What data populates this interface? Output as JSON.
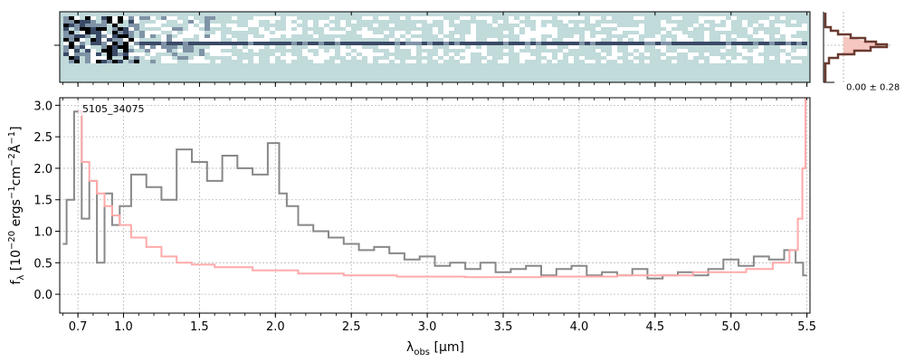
{
  "chart_data": [
    {
      "type": "heatmap",
      "panel": "2d-spectrum",
      "colormap": [
        "#000000",
        "#3a4a66",
        "#7f93a6",
        "#c1dada",
        "#ffffff"
      ],
      "background": "#c1dada",
      "trace_row": "center"
    },
    {
      "type": "line",
      "panel": "1d-spectrum",
      "annotation": "5105_34075",
      "xlabel_main": "λ",
      "xlabel_sub": "obs",
      "xlabel_unit": "[μm]",
      "ylabel": "f_λ [10^-20 ergs^-1cm^-2Å^-1]",
      "ylabel_parts": {
        "base": "f",
        "sub": "λ",
        "open": "[10",
        "exp1": "−20",
        "mid1": " ergs",
        "exp2": "−1",
        "mid2": "cm",
        "exp3": "−2",
        "mid3": "Å",
        "exp4": "−1",
        "close": "]"
      },
      "xlim": [
        0.58,
        5.52
      ],
      "ylim": [
        -0.3,
        3.12
      ],
      "x_ticks": [
        0.7,
        1.0,
        1.5,
        2.0,
        2.5,
        3.0,
        3.5,
        4.0,
        4.5,
        5.0,
        5.5
      ],
      "x_tick_labels": [
        "0.7",
        "1.0",
        "1.5",
        "2.0",
        "2.5",
        "3.0",
        "3.5",
        "4.0",
        "4.5",
        "5.0",
        "5.5"
      ],
      "y_ticks": [
        0.0,
        0.5,
        1.0,
        1.5,
        2.0,
        2.5,
        3.0
      ],
      "y_tick_labels": [
        "0.0",
        "0.5",
        "1.0",
        "1.5",
        "2.0",
        "2.5",
        "3.0"
      ],
      "grid": true,
      "series": [
        {
          "color": "#888888",
          "x": [
            0.6,
            0.65,
            0.7,
            0.75,
            0.8,
            0.85,
            0.9,
            0.95,
            1.0,
            1.1,
            1.2,
            1.3,
            1.4,
            1.5,
            1.6,
            1.7,
            1.8,
            1.9,
            2.0,
            2.05,
            2.1,
            2.2,
            2.3,
            2.4,
            2.5,
            2.6,
            2.7,
            2.8,
            2.9,
            3.0,
            3.1,
            3.2,
            3.3,
            3.4,
            3.5,
            3.6,
            3.7,
            3.8,
            3.9,
            4.0,
            4.1,
            4.2,
            4.3,
            4.4,
            4.5,
            4.6,
            4.7,
            4.8,
            4.9,
            5.0,
            5.1,
            5.2,
            5.3,
            5.4,
            5.45,
            5.5
          ],
          "y": [
            0.8,
            1.5,
            2.9,
            1.2,
            1.8,
            0.5,
            1.6,
            1.1,
            1.4,
            1.9,
            1.7,
            1.5,
            2.3,
            2.1,
            1.8,
            2.2,
            2.0,
            1.9,
            2.4,
            1.6,
            1.4,
            1.1,
            1.0,
            0.9,
            0.8,
            0.7,
            0.75,
            0.65,
            0.55,
            0.6,
            0.45,
            0.5,
            0.4,
            0.5,
            0.35,
            0.4,
            0.45,
            0.3,
            0.4,
            0.45,
            0.3,
            0.35,
            0.3,
            0.4,
            0.25,
            0.3,
            0.35,
            0.3,
            0.4,
            0.55,
            0.45,
            0.6,
            0.55,
            0.7,
            0.5,
            0.3
          ]
        },
        {
          "color": "#ffaaaa",
          "x": [
            0.7,
            0.75,
            0.8,
            0.85,
            0.9,
            0.95,
            1.0,
            1.1,
            1.2,
            1.3,
            1.4,
            1.5,
            1.7,
            2.0,
            2.3,
            2.6,
            3.0,
            3.5,
            4.0,
            4.5,
            5.0,
            5.2,
            5.35,
            5.42,
            5.46,
            5.48,
            5.5
          ],
          "y": [
            2.9,
            2.1,
            1.8,
            1.6,
            1.4,
            1.25,
            1.1,
            0.9,
            0.75,
            0.6,
            0.5,
            0.47,
            0.43,
            0.38,
            0.33,
            0.3,
            0.28,
            0.27,
            0.28,
            0.3,
            0.35,
            0.4,
            0.5,
            0.7,
            1.2,
            2.0,
            3.1
          ]
        }
      ]
    },
    {
      "type": "line",
      "panel": "cross-dispersion-profile",
      "annotation": "0.00 ± 0.28"
    }
  ]
}
